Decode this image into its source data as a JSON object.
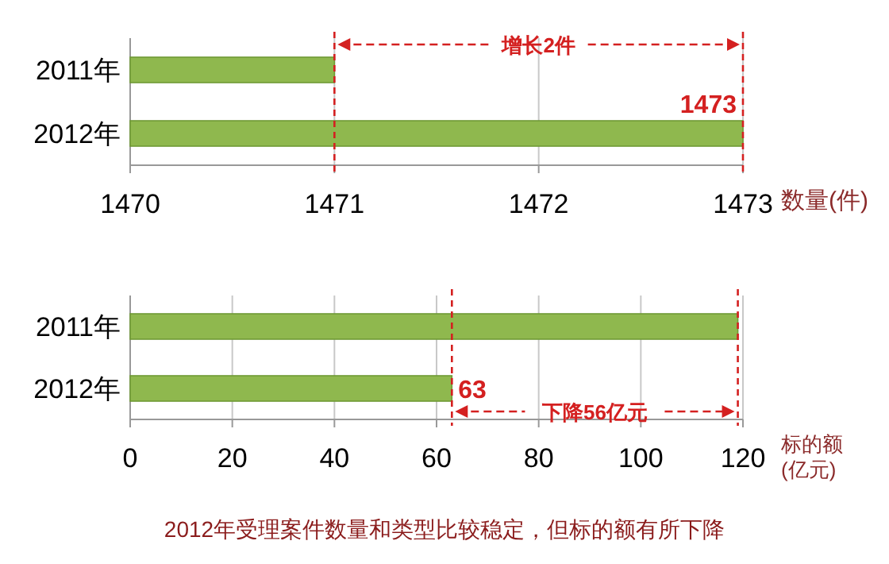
{
  "chart_data": [
    {
      "type": "bar",
      "orientation": "horizontal",
      "categories": [
        "2011年",
        "2012年"
      ],
      "values": [
        1471,
        1473
      ],
      "color": "#8fb84e",
      "xlim": [
        1470,
        1473
      ],
      "xticks": [
        1470,
        1471,
        1472,
        1473
      ],
      "grid": "x",
      "xlabel": "数量(件)",
      "value_labels": [
        null,
        "1473"
      ],
      "ref_lines": [
        {
          "axis": "x",
          "value": 1471
        },
        {
          "axis": "x",
          "value": 1473
        }
      ],
      "annotations": [
        {
          "text": "增长2件",
          "x": 1473
        }
      ]
    },
    {
      "type": "bar",
      "orientation": "horizontal",
      "categories": [
        "2011年",
        "2012年"
      ],
      "values": [
        119,
        63
      ],
      "color": "#8fb84e",
      "xlim": [
        0,
        120
      ],
      "xticks": [
        0,
        20,
        40,
        60,
        80,
        100,
        120
      ],
      "grid": "x",
      "xlabel": "标的额(亿元)",
      "value_labels": [
        null,
        "63"
      ],
      "ref_lines": [
        {
          "axis": "x",
          "value": 63
        },
        {
          "axis": "x",
          "value": 119
        }
      ],
      "annotations": [
        {
          "text": "下降56亿元",
          "x": 63
        },
        "2012年受理案件数量和类型比较稳定，但标的额有所下降"
      ]
    }
  ]
}
